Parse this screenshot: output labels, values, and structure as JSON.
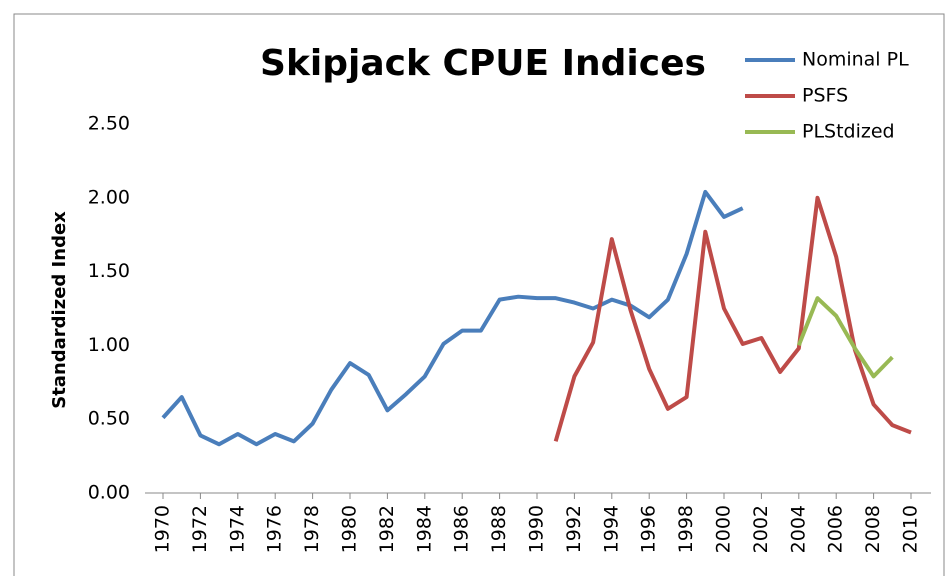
{
  "chart_data": {
    "type": "line",
    "title": "Skipjack CPUE Indices",
    "y_label": "Standardized Index",
    "x": [
      1970,
      1971,
      1972,
      1973,
      1974,
      1975,
      1976,
      1977,
      1978,
      1979,
      1980,
      1981,
      1982,
      1983,
      1984,
      1985,
      1986,
      1987,
      1988,
      1989,
      1990,
      1991,
      1992,
      1993,
      1994,
      1995,
      1996,
      1997,
      1998,
      1999,
      2000,
      2001,
      2002,
      2003,
      2004,
      2005,
      2006,
      2007,
      2008,
      2009,
      2010
    ],
    "series": [
      {
        "name": "Nominal PL",
        "color": "#4a7ebb",
        "values": [
          0.51,
          0.65,
          0.39,
          0.33,
          0.4,
          0.33,
          0.4,
          0.35,
          0.47,
          0.7,
          0.88,
          0.8,
          0.56,
          0.67,
          0.79,
          1.01,
          1.1,
          1.1,
          1.31,
          1.33,
          1.32,
          1.32,
          1.29,
          1.25,
          1.31,
          1.27,
          1.19,
          1.31,
          1.62,
          2.04,
          1.87,
          1.93,
          null,
          null,
          null,
          null,
          null,
          null,
          null,
          null,
          null
        ]
      },
      {
        "name": "PSFS",
        "color": "#be4b48",
        "values": [
          null,
          null,
          null,
          null,
          null,
          null,
          null,
          null,
          null,
          null,
          null,
          null,
          null,
          null,
          null,
          null,
          null,
          null,
          null,
          null,
          null,
          0.35,
          0.79,
          1.02,
          1.72,
          1.24,
          0.84,
          0.57,
          0.65,
          1.77,
          1.25,
          1.01,
          1.05,
          0.82,
          0.98,
          2.0,
          1.6,
          0.97,
          0.6,
          0.46,
          0.41
        ]
      },
      {
        "name": "PLStdized",
        "color": "#98b954",
        "values": [
          null,
          null,
          null,
          null,
          null,
          null,
          null,
          null,
          null,
          null,
          null,
          null,
          null,
          null,
          null,
          null,
          null,
          null,
          null,
          null,
          null,
          null,
          null,
          null,
          null,
          null,
          null,
          null,
          null,
          null,
          null,
          null,
          null,
          null,
          1.0,
          1.32,
          1.2,
          0.98,
          0.79,
          0.92,
          null
        ]
      }
    ],
    "xlim": [
      1970,
      2010
    ],
    "xticks": [
      1970,
      1972,
      1974,
      1976,
      1978,
      1980,
      1982,
      1984,
      1986,
      1988,
      1990,
      1992,
      1994,
      1996,
      1998,
      2000,
      2002,
      2004,
      2006,
      2008,
      2010
    ],
    "ylim": [
      0,
      2.5
    ],
    "yticks": [
      {
        "value": 0,
        "label": "0.00"
      },
      {
        "value": 0.5,
        "label": "0.50"
      },
      {
        "value": 1,
        "label": "1.00"
      },
      {
        "value": 1.5,
        "label": "1.50"
      },
      {
        "value": 2,
        "label": "2.00"
      },
      {
        "value": 2.5,
        "label": "2.50"
      }
    ],
    "grid": false,
    "legend": "top-right"
  }
}
